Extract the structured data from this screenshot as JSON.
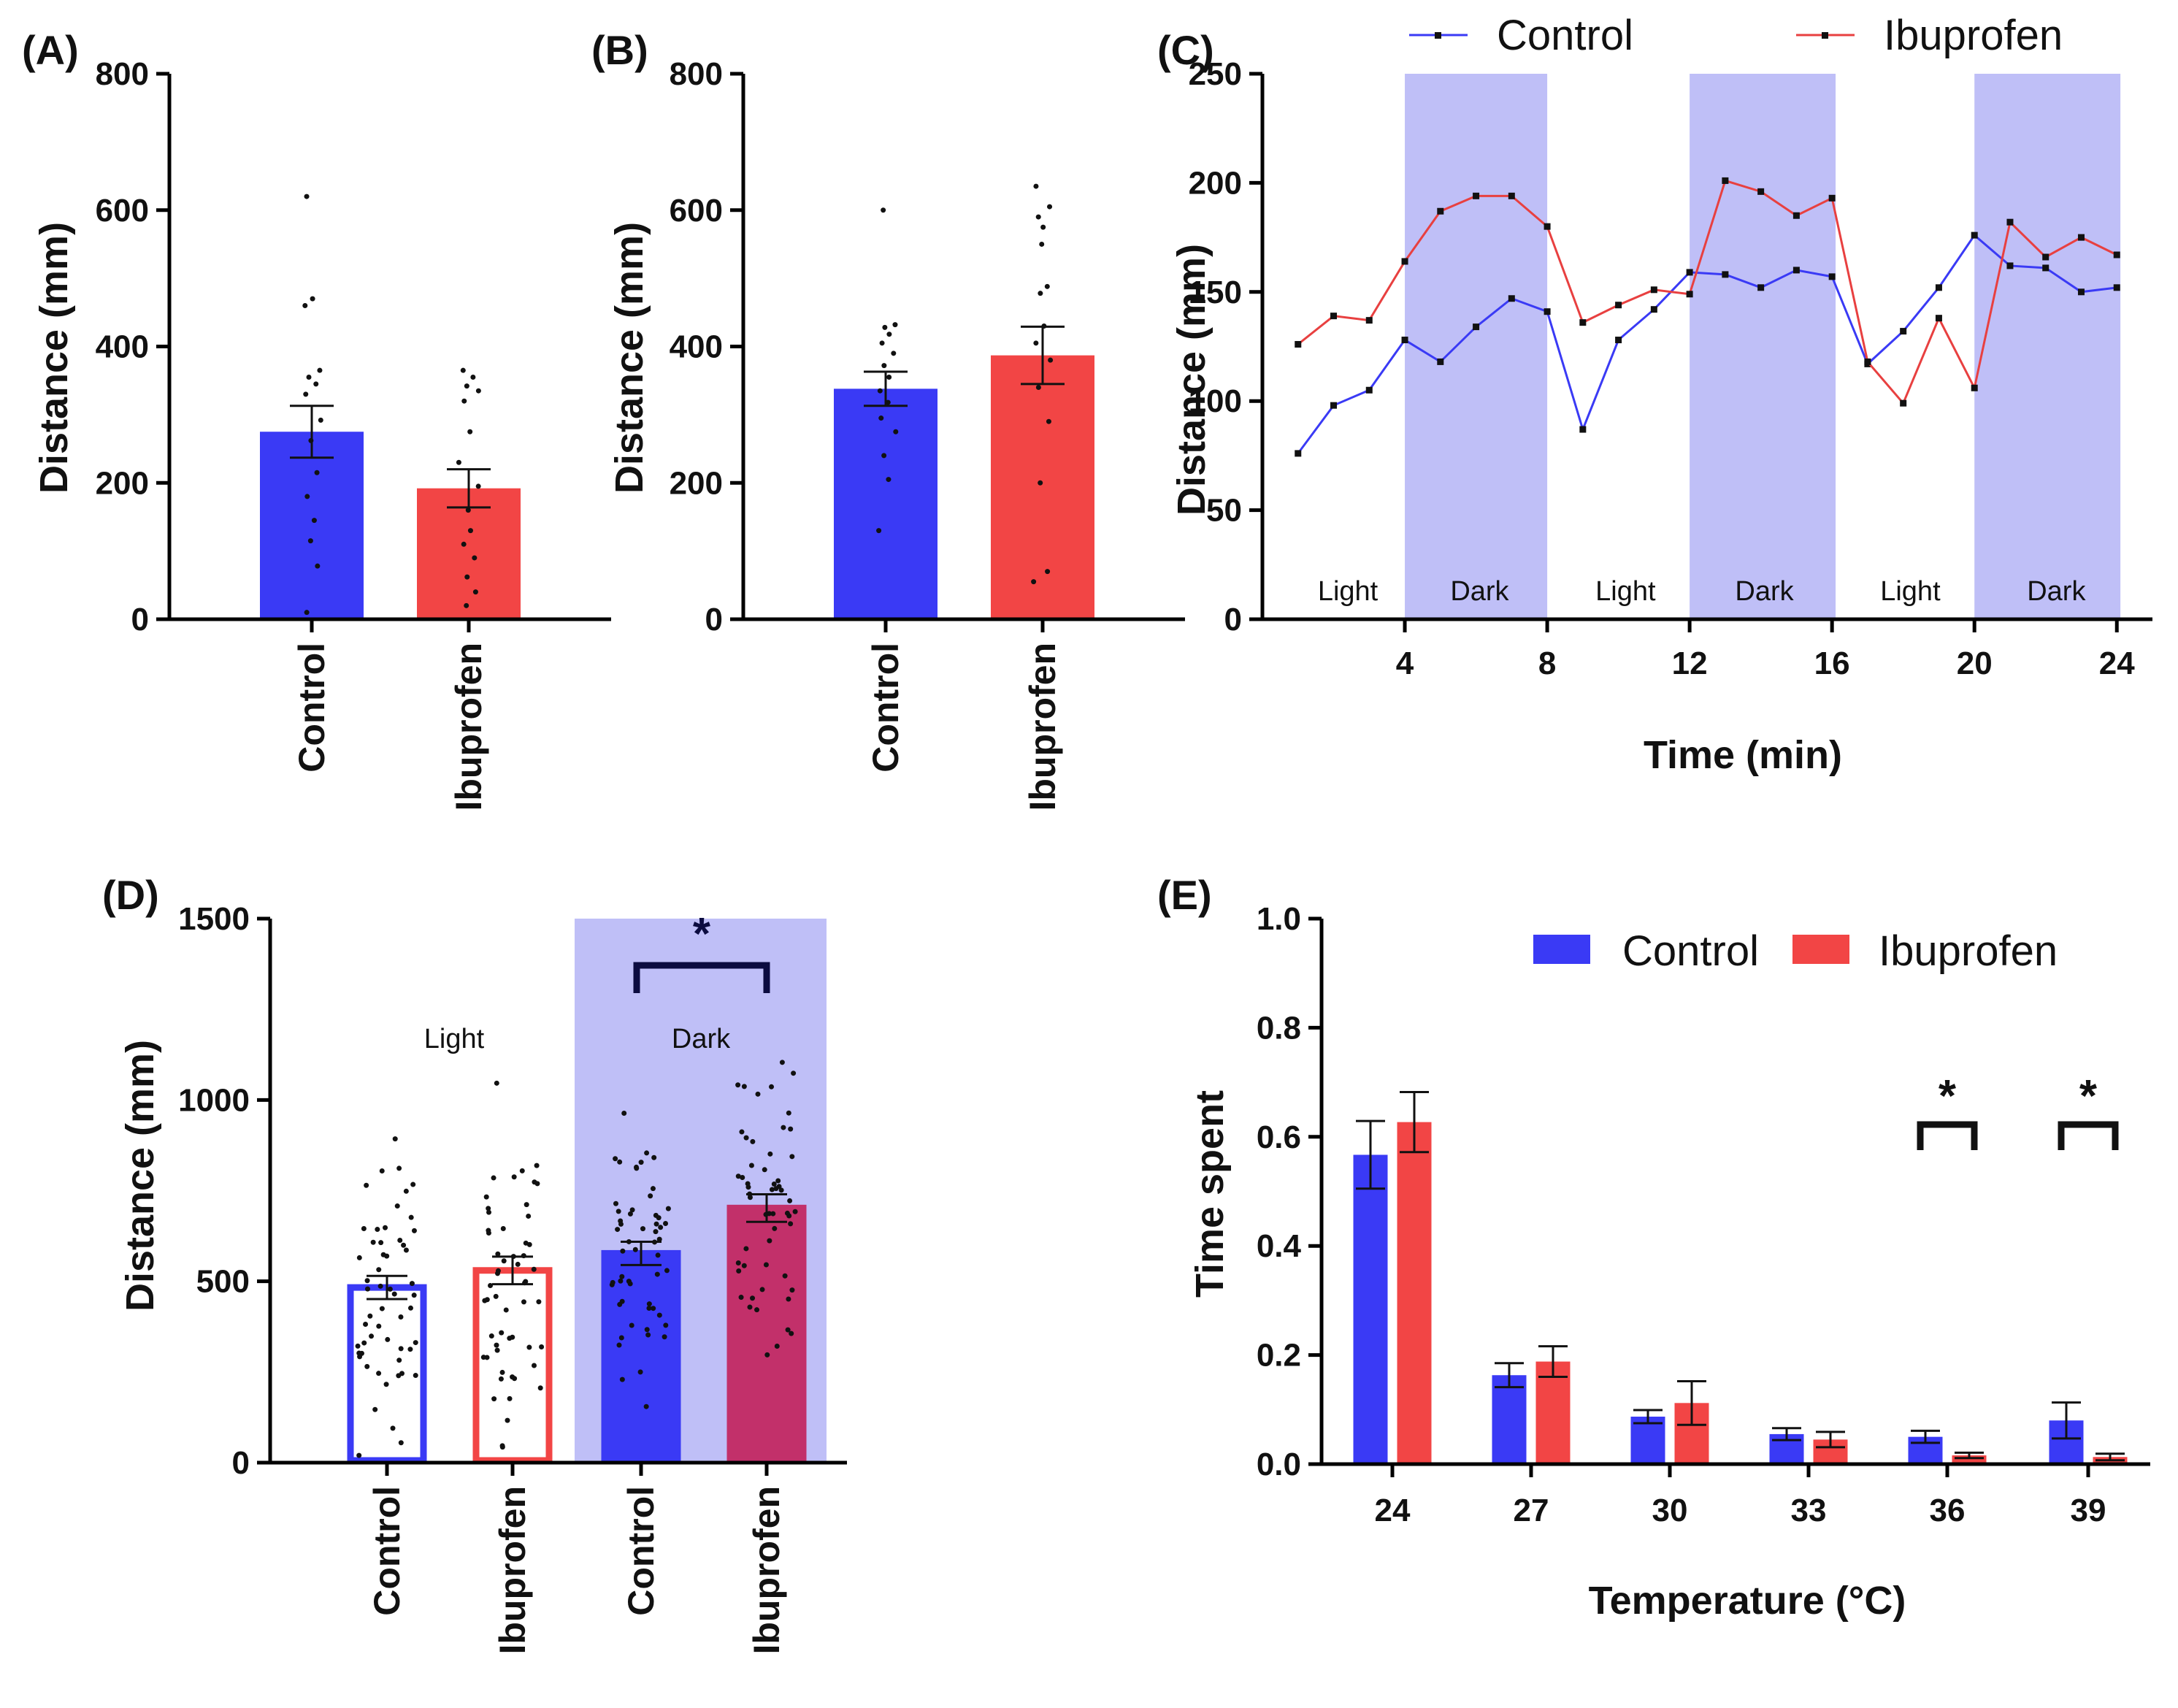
{
  "colors": {
    "control": "#3a3af5",
    "ibuprofen": "#f24545",
    "dark_shade": "#bfbff7",
    "dark_ibuprofen": "#c2306a",
    "sig": "#0c0c40"
  },
  "chart_data": [
    {
      "id": "A",
      "panel_label": "(A)",
      "type": "bar",
      "ylabel": "Distance (mm)",
      "ylim": [
        0,
        800
      ],
      "yticks": [
        0,
        200,
        400,
        600,
        800
      ],
      "categories": [
        "Control",
        "Ibuprofen"
      ],
      "values": [
        275,
        192
      ],
      "sem": [
        38,
        28
      ],
      "points": [
        [
          10,
          78,
          115,
          145,
          180,
          215,
          262,
          292,
          330,
          345,
          355,
          365,
          460,
          470,
          620
        ],
        [
          20,
          40,
          62,
          90,
          110,
          130,
          160,
          195,
          230,
          275,
          320,
          335,
          342,
          355,
          365
        ]
      ]
    },
    {
      "id": "B",
      "panel_label": "(B)",
      "type": "bar",
      "ylabel": "Distance (mm)",
      "ylim": [
        0,
        800
      ],
      "yticks": [
        0,
        200,
        400,
        600,
        800
      ],
      "categories": [
        "Control",
        "Ibuprofen"
      ],
      "values": [
        338,
        387
      ],
      "sem": [
        25,
        42
      ],
      "points": [
        [
          130,
          205,
          240,
          275,
          295,
          318,
          335,
          355,
          372,
          390,
          405,
          418,
          428,
          432,
          600
        ],
        [
          55,
          70,
          200,
          290,
          340,
          380,
          405,
          430,
          478,
          488,
          550,
          575,
          590,
          605,
          635
        ]
      ]
    },
    {
      "id": "C",
      "panel_label": "(C)",
      "type": "line",
      "xlabel": "Time (min)",
      "ylabel": "Distance (mm)",
      "xlim": [
        0,
        25
      ],
      "ylim": [
        0,
        250
      ],
      "xticks": [
        4,
        8,
        12,
        16,
        20,
        24
      ],
      "yticks": [
        0,
        50,
        100,
        150,
        200,
        250
      ],
      "x": [
        1,
        2,
        3,
        4,
        5,
        6,
        7,
        8,
        9,
        10,
        11,
        12,
        13,
        14,
        15,
        16,
        17,
        18,
        19,
        20,
        21,
        22,
        23,
        24
      ],
      "series": [
        {
          "name": "Control",
          "values": [
            76,
            98,
            105,
            128,
            118,
            134,
            147,
            141,
            87,
            128,
            142,
            159,
            158,
            152,
            160,
            157,
            117,
            132,
            152,
            176,
            162,
            161,
            150,
            152
          ]
        },
        {
          "name": "Ibuprofen",
          "values": [
            126,
            139,
            137,
            164,
            187,
            194,
            194,
            180,
            136,
            144,
            151,
            149,
            201,
            196,
            185,
            193,
            118,
            99,
            138,
            106,
            182,
            166,
            175,
            167
          ]
        }
      ],
      "shaded": [
        [
          4,
          8
        ],
        [
          12,
          16.1
        ],
        [
          20,
          24.1
        ]
      ],
      "annotations": [
        {
          "x": 2.4,
          "text": "Light"
        },
        {
          "x": 6.1,
          "text": "Dark"
        },
        {
          "x": 10.2,
          "text": "Light"
        },
        {
          "x": 14.1,
          "text": "Dark"
        },
        {
          "x": 18.2,
          "text": "Light"
        },
        {
          "x": 22.3,
          "text": "Dark"
        }
      ],
      "legend": [
        "Control",
        "Ibuprofen"
      ]
    },
    {
      "id": "D",
      "panel_label": "(D)",
      "type": "bar",
      "ylabel": "Distance (mm)",
      "ylim": [
        0,
        1500
      ],
      "yticks": [
        0,
        500,
        1000,
        1500
      ],
      "categories": [
        "Control",
        "Ibuprofen",
        "Control",
        "Ibuprofen"
      ],
      "groups": [
        "Light",
        "Dark"
      ],
      "values": [
        483,
        530,
        577,
        702
      ],
      "sem": [
        32,
        38,
        32,
        38
      ],
      "significance": "*"
    },
    {
      "id": "E",
      "panel_label": "(E)",
      "type": "bar",
      "xlabel": "Temperature (°C)",
      "ylabel": "Time spent",
      "ylim": [
        0,
        1.0
      ],
      "yticks": [
        "0.0",
        "0.2",
        "0.4",
        "0.6",
        "0.8",
        "1.0"
      ],
      "categories": [
        "24",
        "27",
        "30",
        "33",
        "36",
        "39"
      ],
      "series": [
        {
          "name": "Control",
          "values": [
            0.567,
            0.163,
            0.087,
            0.055,
            0.05,
            0.08
          ],
          "sem": [
            0.062,
            0.022,
            0.012,
            0.011,
            0.011,
            0.033
          ]
        },
        {
          "name": "Ibuprofen",
          "values": [
            0.627,
            0.188,
            0.112,
            0.045,
            0.016,
            0.013
          ],
          "sem": [
            0.055,
            0.028,
            0.04,
            0.014,
            0.005,
            0.006
          ]
        }
      ],
      "significance": [
        {
          "category": "36",
          "text": "*"
        },
        {
          "category": "39",
          "text": "*"
        }
      ],
      "legend": [
        "Control",
        "Ibuprofen"
      ]
    }
  ]
}
